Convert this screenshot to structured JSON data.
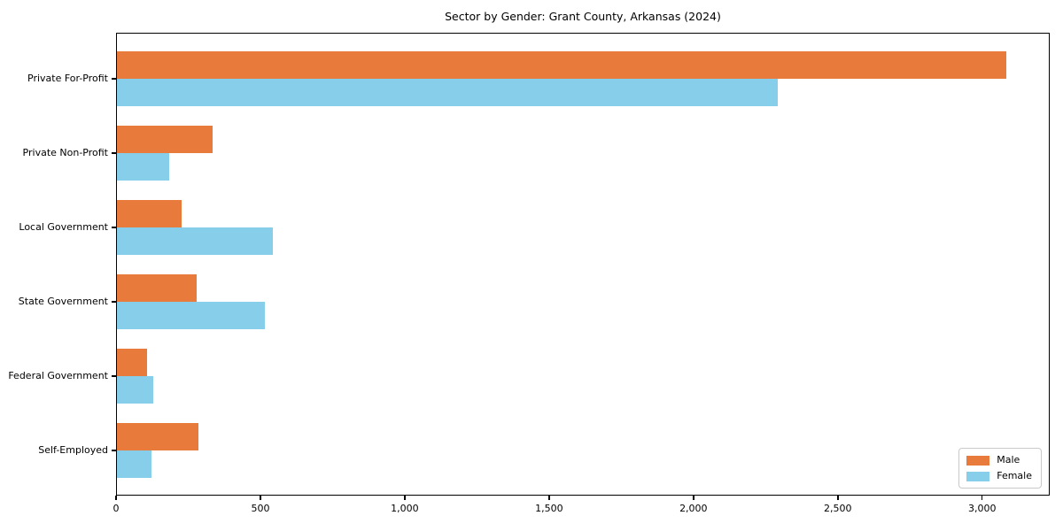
{
  "chart_data": {
    "type": "bar",
    "orientation": "horizontal",
    "title": "Sector by Gender: Grant County, Arkansas (2024)",
    "categories": [
      "Private For-Profit",
      "Private Non-Profit",
      "Local Government",
      "State Government",
      "Federal Government",
      "Self-Employed"
    ],
    "series": [
      {
        "name": "Male",
        "color": "#e87a3c",
        "values": [
          3080,
          330,
          225,
          276,
          103,
          282
        ]
      },
      {
        "name": "Female",
        "color": "#87ceeb",
        "values": [
          2289,
          181,
          539,
          513,
          125,
          120
        ]
      }
    ],
    "xlabel": "",
    "ylabel": "",
    "xlim": [
      0,
      3234
    ],
    "xticks": [
      0,
      500,
      1000,
      1500,
      2000,
      2500,
      3000
    ],
    "xtick_labels": [
      "0",
      "500",
      "1,000",
      "1,500",
      "2,000",
      "2,500",
      "3,000"
    ],
    "grid": false,
    "legend": {
      "position": "lower right",
      "entries": [
        "Male",
        "Female"
      ]
    }
  },
  "colors": {
    "male": "#e87a3c",
    "female": "#87ceeb",
    "spine": "#000000",
    "background": "#ffffff",
    "legend_border": "#c9c9c9"
  }
}
